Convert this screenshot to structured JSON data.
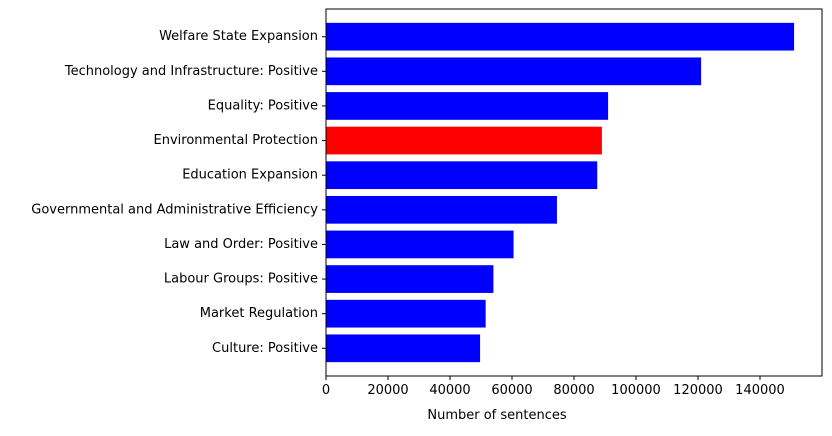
{
  "chart_data": {
    "type": "bar",
    "orientation": "horizontal",
    "title": "",
    "xlabel": "Number of sentences",
    "ylabel": "",
    "xlim": [
      0,
      160000
    ],
    "xticks": [
      0,
      20000,
      40000,
      60000,
      80000,
      100000,
      120000,
      140000
    ],
    "grid": false,
    "categories": [
      "Welfare State Expansion",
      "Technology and Infrastructure: Positive",
      "Equality: Positive",
      "Environmental Protection",
      "Education Expansion",
      "Governmental and Administrative Efficiency",
      "Law and Order: Positive",
      "Labour Groups: Positive",
      "Market Regulation",
      "Culture: Positive"
    ],
    "values": [
      151000,
      121000,
      91000,
      89000,
      87500,
      74500,
      60500,
      54000,
      51500,
      49700
    ],
    "colors": [
      "#0000ff",
      "#0000ff",
      "#0000ff",
      "#ff0000",
      "#0000ff",
      "#0000ff",
      "#0000ff",
      "#0000ff",
      "#0000ff",
      "#0000ff"
    ],
    "highlighted_category": "Environmental Protection"
  }
}
